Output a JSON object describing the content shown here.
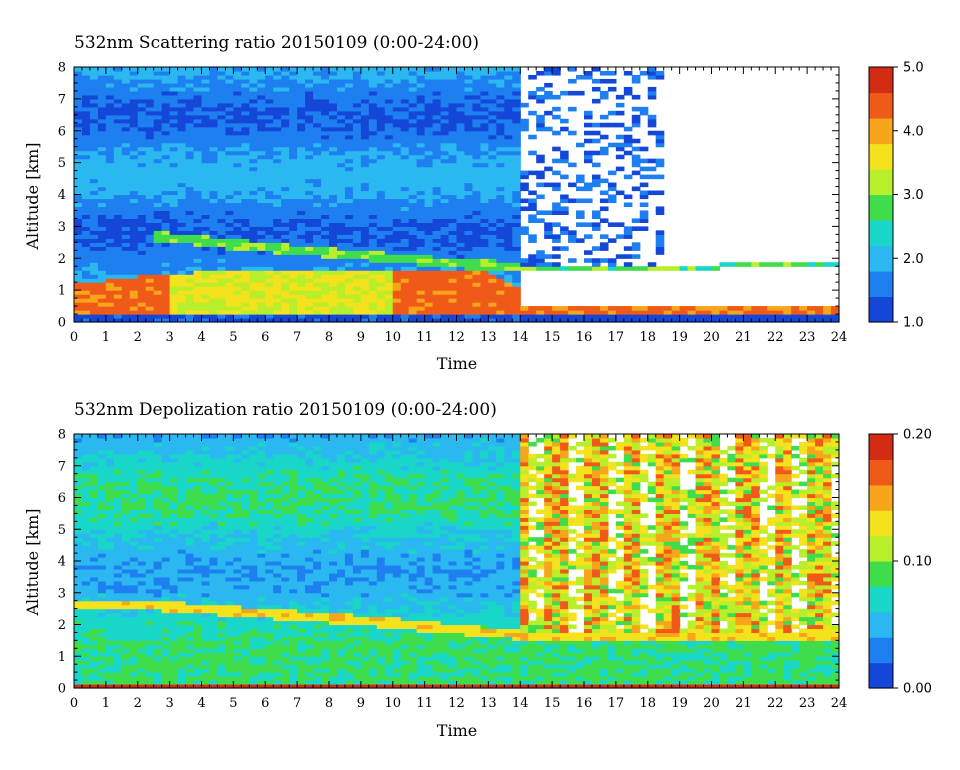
{
  "chart_data": [
    {
      "type": "heatmap",
      "title": "532nm Scattering ratio  20150109 (0:00-24:00)",
      "xlabel": "Time",
      "ylabel": "Altitude [km]",
      "xlim": [
        0,
        24
      ],
      "ylim": [
        0,
        8
      ],
      "x_ticks": [
        "0",
        "1",
        "2",
        "3",
        "4",
        "5",
        "6",
        "7",
        "8",
        "9",
        "10",
        "11",
        "12",
        "13",
        "14",
        "15",
        "16",
        "17",
        "18",
        "19",
        "20",
        "21",
        "22",
        "23",
        "24"
      ],
      "y_ticks": [
        "0",
        "1",
        "2",
        "3",
        "4",
        "5",
        "6",
        "7",
        "8"
      ],
      "colorbar": {
        "range": [
          1.0,
          5.0
        ],
        "ticks": [
          "1.0",
          "2.0",
          "3.0",
          "4.0",
          "5.0"
        ]
      },
      "features": {
        "boundary_layer_top_km": [
          [
            0,
            1.2
          ],
          [
            3,
            1.55
          ],
          [
            6,
            1.6
          ],
          [
            10,
            1.65
          ],
          [
            13,
            1.6
          ],
          [
            14,
            1.0
          ]
        ],
        "elevated_layer_km": [
          [
            2.5,
            2.7
          ],
          [
            6,
            2.35
          ],
          [
            9,
            2.1
          ],
          [
            12,
            1.85
          ],
          [
            14,
            1.75
          ]
        ],
        "cloud_top_km": [
          [
            14,
            1.75
          ],
          [
            18,
            1.7
          ],
          [
            21,
            1.85
          ],
          [
            24,
            1.9
          ]
        ],
        "blank_after_hour": 14.1
      }
    },
    {
      "type": "heatmap",
      "title": "532nm Depolization ratio  20150109 (0:00-24:00)",
      "xlabel": "Time",
      "ylabel": "Altitude [km]",
      "xlim": [
        0,
        24
      ],
      "ylim": [
        0,
        8
      ],
      "x_ticks": [
        "0",
        "1",
        "2",
        "3",
        "4",
        "5",
        "6",
        "7",
        "8",
        "9",
        "10",
        "11",
        "12",
        "13",
        "14",
        "15",
        "16",
        "17",
        "18",
        "19",
        "20",
        "21",
        "22",
        "23",
        "24"
      ],
      "y_ticks": [
        "0",
        "1",
        "2",
        "3",
        "4",
        "5",
        "6",
        "7",
        "8"
      ],
      "colorbar": {
        "range": [
          0.0,
          0.2
        ],
        "ticks": [
          "0.00",
          "0.10",
          "0.20"
        ]
      },
      "features": {
        "elevated_layer_km": [
          [
            2.5,
            2.6
          ],
          [
            6,
            2.35
          ],
          [
            9,
            2.15
          ],
          [
            12,
            1.85
          ],
          [
            14,
            1.7
          ]
        ],
        "cloud_top_km": [
          [
            14,
            1.7
          ],
          [
            18,
            1.75
          ],
          [
            21,
            1.7
          ],
          [
            24,
            1.9
          ]
        ]
      }
    }
  ],
  "colors": {
    "scale": [
      "#1446d8",
      "#1e7ff0",
      "#2bb8f0",
      "#19d7c8",
      "#3fdd4c",
      "#b9ee2a",
      "#f3e21c",
      "#f7a51a",
      "#f05a18",
      "#d42b14"
    ]
  }
}
